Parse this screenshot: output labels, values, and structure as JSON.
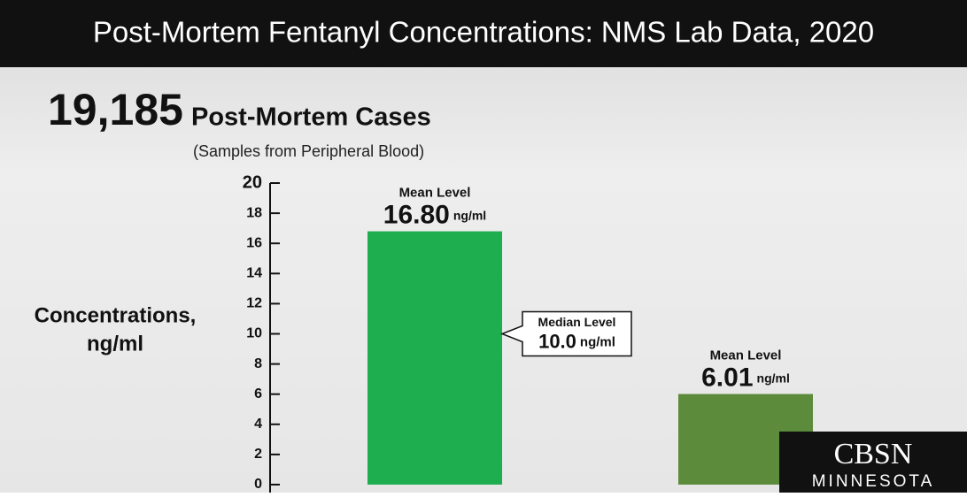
{
  "chart_data": {
    "type": "bar",
    "title": "Post-Mortem Fentanyl Concentrations: NMS Lab Data, 2020",
    "headline": {
      "count": "19,185",
      "label": "Post-Mortem Cases"
    },
    "subtitle": "(Samples from Peripheral Blood)",
    "y_label": [
      "Concentrations,",
      "ng/ml"
    ],
    "categories": [
      null,
      null
    ],
    "series": [
      {
        "colors": [
          "#1fae4f",
          "#5b8b3b"
        ],
        "values": [
          16.8,
          6.01
        ],
        "value_labels": [
          "16.80",
          "6.01"
        ],
        "label_title": "Mean Level",
        "unit": "ng/ml"
      }
    ],
    "annotation": {
      "label": "Median Level",
      "value": 10,
      "value_label": "10.0",
      "unit": "ng/ml"
    },
    "ylim": [
      0,
      20
    ],
    "yticks": [
      0,
      2,
      4,
      6,
      8,
      10,
      12,
      14,
      16,
      18,
      20
    ],
    "logo": {
      "brand": "CBSN",
      "region": "MINNESOTA"
    }
  }
}
